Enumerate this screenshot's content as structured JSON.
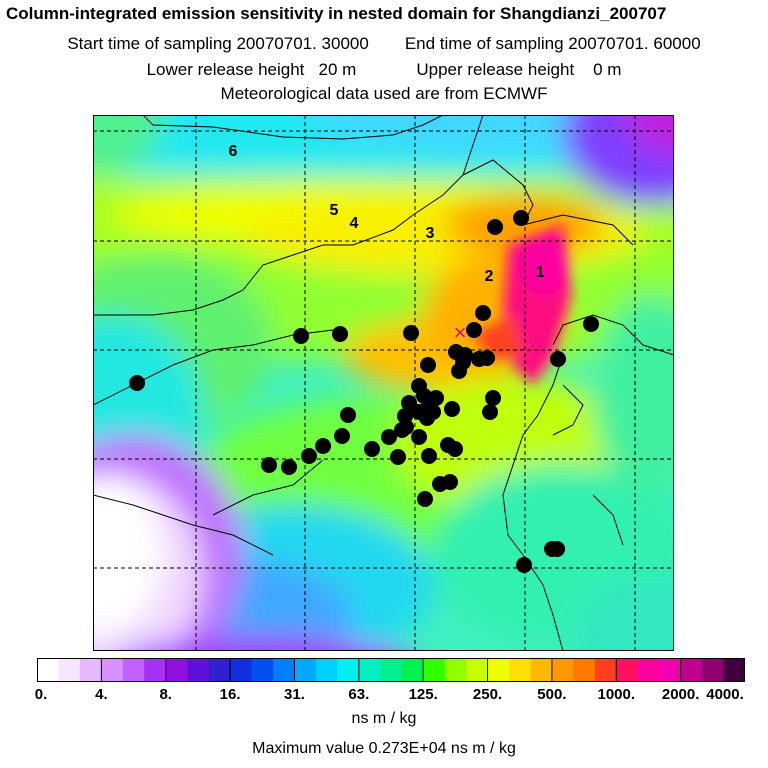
{
  "header": {
    "title": "Column-integrated emission sensitivity in nested domain for Shangdianzi_200707",
    "start_label": "Start time of sampling 20070701. 30000",
    "end_label": "End time of sampling 20070701. 60000",
    "lower_label": "Lower release height   20 m",
    "upper_label": "Upper release height    0 m",
    "met_label": "Meteorological data used are from ECMWF"
  },
  "map": {
    "station_marker": "×",
    "trajectory_labels": [
      "1",
      "2",
      "3",
      "4",
      "5",
      "6"
    ]
  },
  "colorbar": {
    "ticks": [
      "0.",
      "4.",
      "8.",
      "16.",
      "31.",
      "63.",
      "125.",
      "250.",
      "500.",
      "1000.",
      "2000.",
      "4000."
    ],
    "colors": [
      "#ffffff",
      "#f7e6ff",
      "#e8b8ff",
      "#d890ff",
      "#c060ff",
      "#a830f0",
      "#9010e0",
      "#6010d8",
      "#3020d0",
      "#1030e0",
      "#0050f0",
      "#0080f8",
      "#00a8ff",
      "#00d0ff",
      "#00f0f0",
      "#00f0c0",
      "#00f090",
      "#00f050",
      "#30ff00",
      "#90ff00",
      "#c8ff00",
      "#f0ff00",
      "#ffe000",
      "#ffb800",
      "#ff9800",
      "#ff7800",
      "#ff4020",
      "#ff1060",
      "#ff00a0",
      "#f000b0",
      "#c00090",
      "#900070",
      "#400040"
    ],
    "unit_label": "ns m / kg"
  },
  "footer": {
    "max_value_label": "Maximum value  0.273E+04 ns m / kg"
  },
  "colors": {
    "grid": "#000000",
    "station": "#c0108a"
  }
}
